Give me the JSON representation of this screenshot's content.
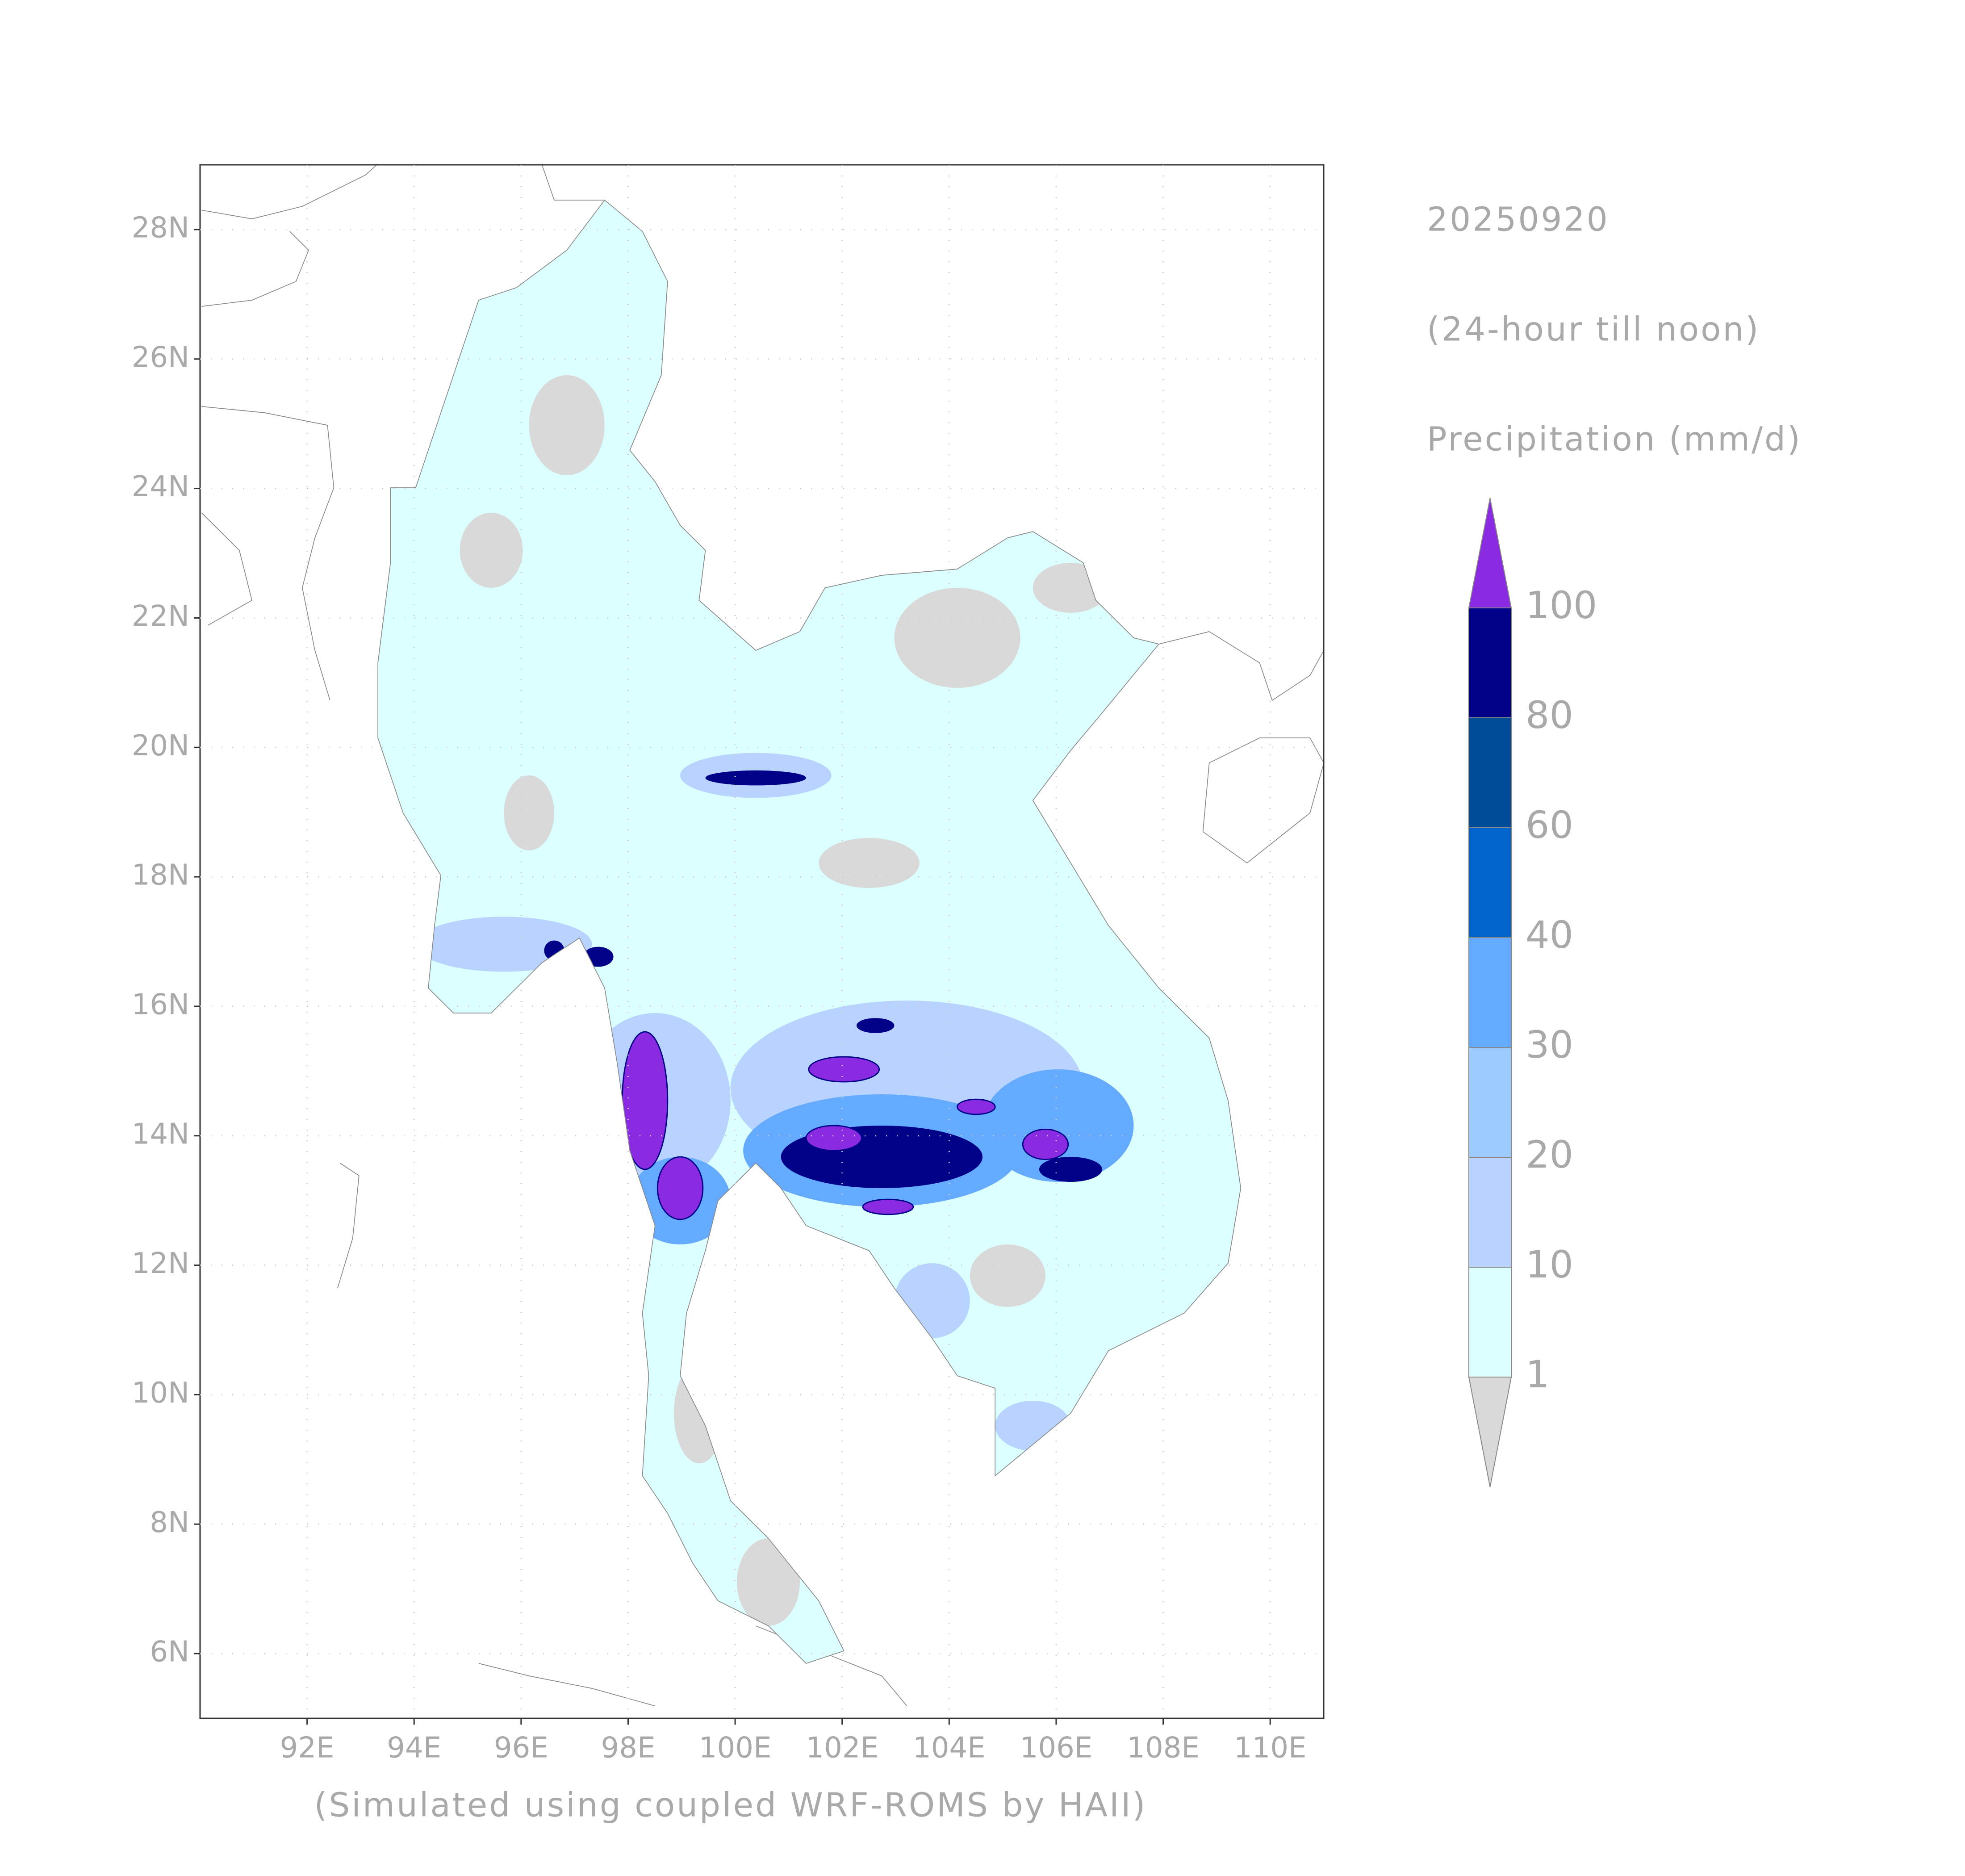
{
  "map": {
    "title": "20250920",
    "subtitle": "(24-hour till noon)",
    "variable": "Precipitation (mm/d)",
    "footer": "(Simulated using coupled WRF-ROMS by HAII)",
    "xlim": [
      90,
      111
    ],
    "ylim": [
      5,
      29
    ],
    "xticks": [
      {
        "value": 92,
        "label": "92E"
      },
      {
        "value": 94,
        "label": "94E"
      },
      {
        "value": 96,
        "label": "96E"
      },
      {
        "value": 98,
        "label": "98E"
      },
      {
        "value": 100,
        "label": "100E"
      },
      {
        "value": 102,
        "label": "102E"
      },
      {
        "value": 104,
        "label": "104E"
      },
      {
        "value": 106,
        "label": "106E"
      },
      {
        "value": 108,
        "label": "108E"
      },
      {
        "value": 110,
        "label": "110E"
      }
    ],
    "yticks": [
      {
        "value": 6,
        "label": "6N"
      },
      {
        "value": 8,
        "label": "8N"
      },
      {
        "value": 10,
        "label": "10N"
      },
      {
        "value": 12,
        "label": "12N"
      },
      {
        "value": 14,
        "label": "14N"
      },
      {
        "value": 16,
        "label": "16N"
      },
      {
        "value": 18,
        "label": "18N"
      },
      {
        "value": 20,
        "label": "20N"
      },
      {
        "value": 22,
        "label": "22N"
      },
      {
        "value": 24,
        "label": "24N"
      },
      {
        "value": 26,
        "label": "26N"
      },
      {
        "value": 28,
        "label": "28N"
      }
    ],
    "grid": true,
    "legend": {
      "levels": [
        1,
        10,
        20,
        30,
        40,
        60,
        80,
        100
      ],
      "colors": [
        "#d9d9d9",
        "#dcffff",
        "#b8d3ff",
        "#9ccbff",
        "#64aaff",
        "#0064cc",
        "#004c99",
        "#000088",
        "#8a2be2"
      ]
    }
  }
}
